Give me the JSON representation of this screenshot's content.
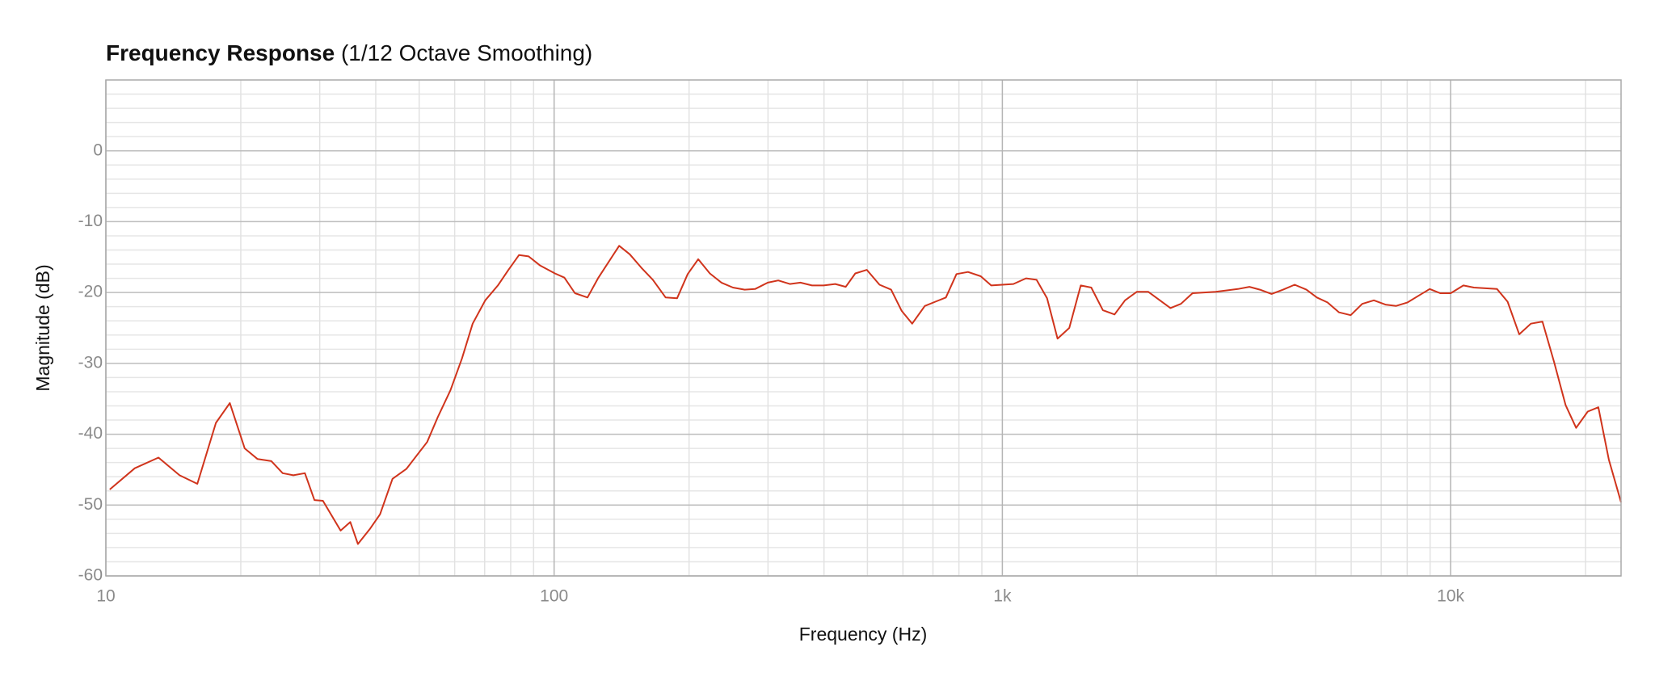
{
  "chart_data": {
    "type": "line",
    "title": "Frequency Response",
    "subtitle": "(1/12 Octave Smoothing)",
    "x_label": "Frequency (Hz)",
    "y_label": "Magnitude (dB)",
    "x_log": true,
    "grid": true,
    "xlim": [
      10,
      24000
    ],
    "ylim": [
      -60,
      10
    ],
    "xticks": [
      10,
      100,
      {
        "value": 1000,
        "label": "1k"
      },
      {
        "value": 10000,
        "label": "10k"
      }
    ],
    "x_minor_ticks": [
      20,
      30,
      40,
      50,
      60,
      70,
      80,
      90,
      200,
      300,
      400,
      500,
      600,
      700,
      800,
      900,
      2000,
      3000,
      4000,
      5000,
      6000,
      7000,
      8000,
      9000,
      20000
    ],
    "yticks": [
      -60,
      -50,
      -40,
      -30,
      -20,
      -10,
      0
    ],
    "y_minor_ticks": [
      -58,
      -56,
      -54,
      -52,
      -48,
      -46,
      -44,
      -42,
      -38,
      -36,
      -34,
      -32,
      -28,
      -26,
      -24,
      -22,
      -18,
      -16,
      -14,
      -12,
      -8,
      -6,
      -4,
      -2,
      2,
      4,
      6,
      8
    ],
    "series": [
      {
        "name": "Magnitude",
        "color": "#d0341c",
        "x": [
          10.2,
          11.6,
          13.1,
          14.6,
          16.0,
          17.6,
          18.9,
          20.4,
          21.8,
          23.4,
          24.8,
          26.2,
          27.8,
          29.2,
          30.5,
          33.4,
          35.1,
          36.5,
          38.9,
          40.9,
          43.6,
          46.8,
          52.1,
          55.0,
          58.7,
          62.3,
          65.8,
          70.2,
          74.9,
          79.1,
          83.5,
          87.7,
          93.1,
          100.4,
          105.4,
          111.3,
          118.7,
          125.3,
          139.7,
          147.5,
          156.5,
          166.1,
          177.3,
          188.1,
          198.6,
          209.6,
          222.5,
          236.1,
          250.6,
          266.1,
          280.8,
          299.7,
          316.3,
          335.7,
          354.4,
          376.1,
          399.2,
          423.8,
          447.4,
          469.7,
          498.5,
          532.1,
          564.7,
          596.1,
          629.3,
          671.4,
          708.8,
          748.2,
          789.9,
          838.3,
          894.6,
          944.4,
          1058,
          1129,
          1192,
          1258,
          1328,
          1410,
          1496,
          1579,
          1676,
          1779,
          1878,
          1994,
          2116,
          2246,
          2371,
          2502,
          2656,
          2992,
          3352,
          3557,
          3755,
          3986,
          4230,
          4489,
          4766,
          5030,
          5311,
          5636,
          5983,
          6349,
          6740,
          7153,
          7551,
          8014,
          8506,
          8979,
          9478,
          10005,
          10676,
          11272,
          12693,
          13400,
          14227,
          15099,
          16025,
          17009,
          18051,
          19055,
          20228,
          21355,
          22545,
          24000
        ],
        "values": [
          -47.8,
          -44.8,
          -43.3,
          -45.8,
          -47.0,
          -38.4,
          -35.6,
          -42.0,
          -43.5,
          -43.8,
          -45.5,
          -45.8,
          -45.5,
          -49.3,
          -49.4,
          -53.6,
          -52.4,
          -55.5,
          -53.3,
          -51.3,
          -46.3,
          -44.9,
          -41.1,
          -37.6,
          -33.8,
          -29.3,
          -24.4,
          -21.1,
          -19.0,
          -16.8,
          -14.7,
          -14.9,
          -16.2,
          -17.3,
          -17.9,
          -20.1,
          -20.7,
          -18.0,
          -13.4,
          -14.6,
          -16.5,
          -18.2,
          -20.7,
          -20.8,
          -17.4,
          -15.3,
          -17.3,
          -18.6,
          -19.3,
          -19.6,
          -19.5,
          -18.6,
          -18.3,
          -18.8,
          -18.6,
          -19.0,
          -19.0,
          -18.8,
          -19.2,
          -17.3,
          -16.8,
          -18.9,
          -19.6,
          -22.6,
          -24.4,
          -21.9,
          -21.3,
          -20.7,
          -17.4,
          -17.1,
          -17.7,
          -19.0,
          -18.8,
          -18.0,
          -18.2,
          -20.8,
          -26.5,
          -25.0,
          -19.0,
          -19.3,
          -22.5,
          -23.1,
          -21.1,
          -19.9,
          -19.9,
          -21.1,
          -22.2,
          -21.6,
          -20.1,
          -19.9,
          -19.5,
          -19.2,
          -19.6,
          -20.2,
          -19.6,
          -18.9,
          -19.6,
          -20.7,
          -21.4,
          -22.8,
          -23.2,
          -21.6,
          -21.1,
          -21.7,
          -21.9,
          -21.4,
          -20.4,
          -19.5,
          -20.1,
          -20.1,
          -19.0,
          -19.3,
          -19.5,
          -21.3,
          -25.9,
          -24.4,
          -24.1,
          -29.8,
          -35.9,
          -39.1,
          -36.8,
          -36.2,
          -43.6,
          -49.6
        ]
      }
    ]
  }
}
